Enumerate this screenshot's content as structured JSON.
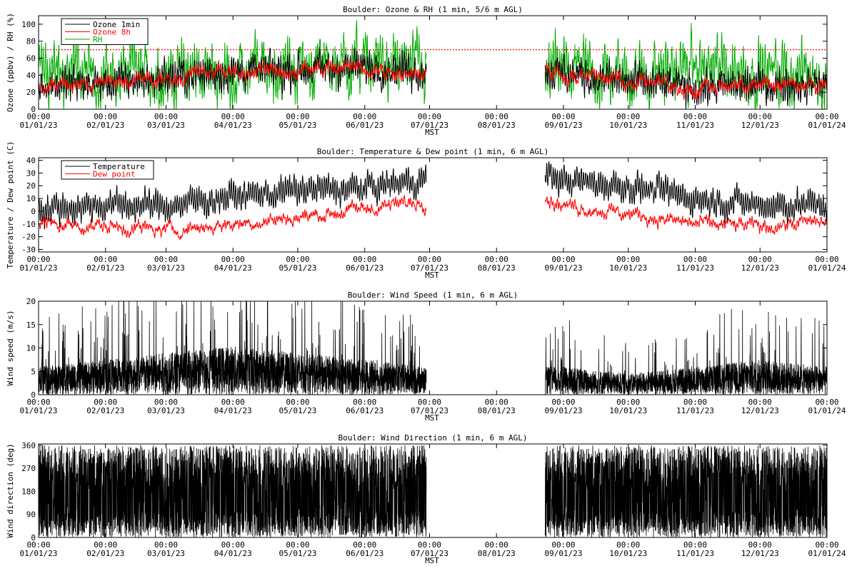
{
  "figure": {
    "panels": [
      {
        "id": "ozone_rh",
        "title": "Boulder: Ozone & RH (1 min, 5/6 m AGL)",
        "ylabel": "Ozone (ppbv) / RH (%)",
        "xlabel": "MST",
        "yticks": [
          "0",
          "20",
          "40",
          "60",
          "80",
          "100"
        ],
        "legend": [
          {
            "label": "Ozone 1min",
            "color": "#000000"
          },
          {
            "label": "Ozone 8h",
            "color": "#ff0000"
          },
          {
            "label": "RH",
            "color": "#00aa00"
          }
        ]
      },
      {
        "id": "temp_dew",
        "title": "Boulder: Temperature & Dew point (1 min, 6 m AGL)",
        "ylabel": "Temperature / Dew point (C)",
        "xlabel": "MST",
        "yticks": [
          "-30",
          "-20",
          "-10",
          "0",
          "10",
          "20",
          "30",
          "40"
        ],
        "legend": [
          {
            "label": "Temperature",
            "color": "#000000"
          },
          {
            "label": "Dew point",
            "color": "#ff0000"
          }
        ]
      },
      {
        "id": "wind_speed",
        "title": "Boulder: Wind Speed (1 min, 6 m AGL)",
        "ylabel": "Wind speed (m/s)",
        "xlabel": "MST",
        "yticks": [
          "0",
          "5",
          "10",
          "15",
          "20"
        ],
        "legend": []
      },
      {
        "id": "wind_dir",
        "title": "Boulder: Wind Direction (1 min, 6 m AGL)",
        "ylabel": "Wind direction (deg)",
        "xlabel": "MST",
        "yticks": [
          "0",
          "90",
          "180",
          "270",
          "360"
        ],
        "legend": []
      }
    ],
    "xtick_times": [
      "00:00",
      "00:00",
      "00:00",
      "00:00",
      "00:00",
      "00:00",
      "00:00",
      "00:00",
      "00:00",
      "00:00",
      "00:00",
      "00:00",
      "00:00"
    ],
    "xtick_dates": [
      "01/01/23",
      "02/01/23",
      "03/01/23",
      "04/01/23",
      "05/01/23",
      "06/01/23",
      "07/01/23",
      "08/01/23",
      "09/01/23",
      "10/01/23",
      "11/01/23",
      "12/01/23",
      "01/01/24"
    ]
  },
  "chart_data": [
    {
      "type": "line",
      "title": "Boulder: Ozone & RH (1 min, 5/6 m AGL)",
      "xlabel": "MST",
      "ylabel": "Ozone (ppbv) / RH (%)",
      "x": [
        "2023-01-01",
        "2023-02-01",
        "2023-03-01",
        "2023-04-01",
        "2023-05-01",
        "2023-06-01",
        "2023-06-29",
        "2023-08-23",
        "2023-09-01",
        "2023-10-01",
        "2023-11-01",
        "2023-12-01",
        "2024-01-01"
      ],
      "xlim": [
        "2023-01-01",
        "2024-01-01"
      ],
      "ylim": [
        0,
        110
      ],
      "data_gap": [
        "2023-06-29",
        "2023-08-23"
      ],
      "series": [
        {
          "name": "Ozone 1min",
          "color": "#000000",
          "values": [
            28,
            30,
            38,
            44,
            46,
            50,
            45,
            45,
            42,
            32,
            25,
            28,
            30
          ]
        },
        {
          "name": "Ozone 8h",
          "color": "#ff0000",
          "values": [
            28,
            30,
            38,
            44,
            46,
            48,
            44,
            44,
            42,
            32,
            26,
            28,
            30
          ]
        },
        {
          "name": "RH",
          "color": "#00aa00",
          "values": [
            45,
            40,
            42,
            45,
            50,
            55,
            45,
            40,
            45,
            40,
            48,
            45,
            40
          ]
        }
      ],
      "reference_line": {
        "y": 70,
        "color": "#ff0000",
        "style": "dotted"
      },
      "legend_position": "top-left"
    },
    {
      "type": "line",
      "title": "Boulder: Temperature & Dew point (1 min, 6 m AGL)",
      "xlabel": "MST",
      "ylabel": "Temperature / Dew point (C)",
      "x": [
        "2023-01-01",
        "2023-02-01",
        "2023-03-01",
        "2023-04-01",
        "2023-05-01",
        "2023-06-01",
        "2023-06-29",
        "2023-08-23",
        "2023-09-01",
        "2023-10-01",
        "2023-11-01",
        "2023-12-01",
        "2024-01-01"
      ],
      "xlim": [
        "2023-01-01",
        "2024-01-01"
      ],
      "ylim": [
        -32,
        42
      ],
      "data_gap": [
        "2023-06-29",
        "2023-08-23"
      ],
      "series": [
        {
          "name": "Temperature",
          "color": "#000000",
          "values": [
            2,
            5,
            4,
            12,
            16,
            18,
            25,
            28,
            24,
            20,
            10,
            5,
            5
          ]
        },
        {
          "name": "Dew point",
          "color": "#ff0000",
          "values": [
            -10,
            -12,
            -15,
            -10,
            -5,
            2,
            8,
            10,
            5,
            -2,
            -10,
            -12,
            -8
          ]
        }
      ],
      "legend_position": "top-left"
    },
    {
      "type": "line",
      "title": "Boulder: Wind Speed (1 min, 6 m AGL)",
      "xlabel": "MST",
      "ylabel": "Wind speed (m/s)",
      "x": [
        "2023-01-01",
        "2023-02-01",
        "2023-03-01",
        "2023-04-01",
        "2023-05-01",
        "2023-06-01",
        "2023-06-29",
        "2023-08-23",
        "2023-09-01",
        "2023-10-01",
        "2023-11-01",
        "2023-12-01",
        "2024-01-01"
      ],
      "xlim": [
        "2023-01-01",
        "2024-01-01"
      ],
      "ylim": [
        0,
        20
      ],
      "data_gap": [
        "2023-06-29",
        "2023-08-23"
      ],
      "series": [
        {
          "name": "Wind speed",
          "color": "#000000",
          "values": [
            4,
            5,
            6,
            7,
            6,
            5,
            4,
            4,
            4,
            3,
            4,
            5,
            4
          ]
        }
      ]
    },
    {
      "type": "line",
      "title": "Boulder: Wind Direction (1 min, 6 m AGL)",
      "xlabel": "MST",
      "ylabel": "Wind direction (deg)",
      "x": [
        "2023-01-01",
        "2023-02-01",
        "2023-03-01",
        "2023-04-01",
        "2023-05-01",
        "2023-06-01",
        "2023-06-29",
        "2023-08-23",
        "2023-09-01",
        "2023-10-01",
        "2023-11-01",
        "2023-12-01",
        "2024-01-01"
      ],
      "xlim": [
        "2023-01-01",
        "2024-01-01"
      ],
      "ylim": [
        0,
        365
      ],
      "data_gap": [
        "2023-06-29",
        "2023-08-23"
      ],
      "series": [
        {
          "name": "Wind direction",
          "color": "#000000",
          "values": [
            180,
            180,
            180,
            120,
            140,
            150,
            160,
            180,
            180,
            180,
            180,
            180,
            180
          ]
        }
      ]
    }
  ]
}
